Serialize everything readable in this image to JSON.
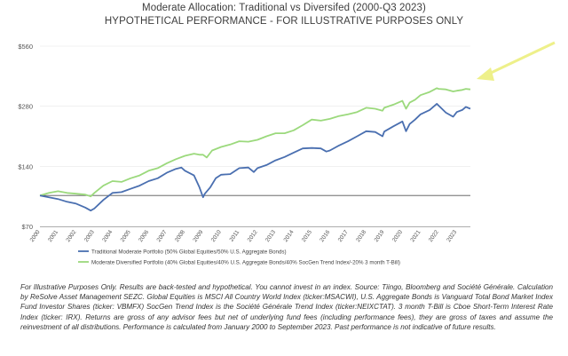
{
  "chart_data": {
    "type": "line",
    "title": "Moderate Allocation: Traditional vs Diversifed (2000-Q3 2023)",
    "subtitle": "HYPOTHETICAL PERFORMANCE - FOR ILLUSTRATIVE PURPOSES ONLY",
    "y_scale": "log",
    "ylim": [
      70,
      560
    ],
    "yticks": [
      "$70",
      "$140",
      "$280",
      "$560"
    ],
    "ytick_values": [
      70,
      140,
      280,
      560
    ],
    "xlim": [
      2000,
      2023.75
    ],
    "xticks": [
      "2000",
      "2001",
      "2002",
      "2003",
      "2004",
      "2005",
      "2006",
      "2007",
      "2008",
      "2009",
      "2010",
      "2011",
      "2012",
      "2013",
      "2014",
      "2015",
      "2016",
      "2017",
      "2018",
      "2019",
      "2020",
      "2021",
      "2022",
      "2023"
    ],
    "reference_line": 100,
    "legend_position": "bottom",
    "series": [
      {
        "name": "Traditional Moderate Portfolio (50% Global Equities/50% U.S. Aggregate Bonds)",
        "color": "#4a6fb0",
        "points": [
          [
            2000,
            100
          ],
          [
            2000.5,
            98
          ],
          [
            2001,
            96
          ],
          [
            2001.5,
            93
          ],
          [
            2002,
            91
          ],
          [
            2002.5,
            87
          ],
          [
            2002.8,
            84
          ],
          [
            2003,
            86
          ],
          [
            2003.5,
            95
          ],
          [
            2004,
            103
          ],
          [
            2004.5,
            104
          ],
          [
            2005,
            108
          ],
          [
            2005.5,
            112
          ],
          [
            2006,
            118
          ],
          [
            2006.5,
            122
          ],
          [
            2007,
            130
          ],
          [
            2007.5,
            136
          ],
          [
            2007.8,
            138
          ],
          [
            2008,
            133
          ],
          [
            2008.5,
            126
          ],
          [
            2008.8,
            110
          ],
          [
            2009.0,
            98
          ],
          [
            2009.1,
            102
          ],
          [
            2009.4,
            110
          ],
          [
            2009.7,
            122
          ],
          [
            2010,
            127
          ],
          [
            2010.5,
            128
          ],
          [
            2011,
            137
          ],
          [
            2011.5,
            138
          ],
          [
            2011.8,
            131
          ],
          [
            2012,
            137
          ],
          [
            2012.5,
            142
          ],
          [
            2013,
            150
          ],
          [
            2013.5,
            156
          ],
          [
            2014,
            164
          ],
          [
            2014.5,
            172
          ],
          [
            2015,
            173
          ],
          [
            2015.5,
            172
          ],
          [
            2015.8,
            166
          ],
          [
            2016,
            168
          ],
          [
            2016.5,
            178
          ],
          [
            2017,
            187
          ],
          [
            2017.5,
            198
          ],
          [
            2018,
            210
          ],
          [
            2018.5,
            208
          ],
          [
            2018.9,
            198
          ],
          [
            2019,
            209
          ],
          [
            2019.5,
            222
          ],
          [
            2020,
            235
          ],
          [
            2020.2,
            210
          ],
          [
            2020.4,
            228
          ],
          [
            2020.7,
            240
          ],
          [
            2021,
            255
          ],
          [
            2021.5,
            268
          ],
          [
            2021.9,
            288
          ],
          [
            2022,
            282
          ],
          [
            2022.4,
            260
          ],
          [
            2022.8,
            248
          ],
          [
            2023,
            262
          ],
          [
            2023.3,
            268
          ],
          [
            2023.5,
            278
          ],
          [
            2023.75,
            272
          ]
        ]
      },
      {
        "name": "Moderate Diversified Portfolio (40% Global Equities/40% U.S. Aggregate Bonds/40% SocGen Trend Index/-20% 3 month T-Bill)",
        "color": "#9bd97c",
        "points": [
          [
            2000,
            100
          ],
          [
            2000.5,
            103
          ],
          [
            2001,
            105
          ],
          [
            2001.5,
            103
          ],
          [
            2002,
            102
          ],
          [
            2002.5,
            101
          ],
          [
            2002.8,
            99
          ],
          [
            2003,
            103
          ],
          [
            2003.5,
            112
          ],
          [
            2004,
            118
          ],
          [
            2004.5,
            117
          ],
          [
            2005,
            122
          ],
          [
            2005.5,
            126
          ],
          [
            2006,
            133
          ],
          [
            2006.5,
            137
          ],
          [
            2007,
            145
          ],
          [
            2007.5,
            152
          ],
          [
            2008,
            158
          ],
          [
            2008.5,
            162
          ],
          [
            2008.8,
            160
          ],
          [
            2009.0,
            160
          ],
          [
            2009.2,
            155
          ],
          [
            2009.5,
            168
          ],
          [
            2010,
            175
          ],
          [
            2010.5,
            180
          ],
          [
            2011,
            187
          ],
          [
            2011.5,
            186
          ],
          [
            2012,
            190
          ],
          [
            2012.5,
            198
          ],
          [
            2013,
            205
          ],
          [
            2013.5,
            205
          ],
          [
            2014,
            212
          ],
          [
            2014.5,
            225
          ],
          [
            2015,
            240
          ],
          [
            2015.5,
            237
          ],
          [
            2016,
            242
          ],
          [
            2016.5,
            250
          ],
          [
            2017,
            255
          ],
          [
            2017.5,
            262
          ],
          [
            2018,
            275
          ],
          [
            2018.5,
            272
          ],
          [
            2018.9,
            266
          ],
          [
            2019,
            275
          ],
          [
            2019.5,
            285
          ],
          [
            2020,
            298
          ],
          [
            2020.2,
            272
          ],
          [
            2020.4,
            292
          ],
          [
            2020.7,
            302
          ],
          [
            2021,
            318
          ],
          [
            2021.5,
            330
          ],
          [
            2021.9,
            345
          ],
          [
            2022,
            342
          ],
          [
            2022.4,
            340
          ],
          [
            2022.8,
            332
          ],
          [
            2023,
            335
          ],
          [
            2023.3,
            338
          ],
          [
            2023.5,
            342
          ],
          [
            2023.75,
            340
          ]
        ]
      }
    ]
  },
  "footnote": "For Illustrative Purposes Only. Results are back-tested and hypothetical. You cannot invest in an index. Source: Tiingo, Bloomberg and Société Générale. Calculation by ReSolve Asset Management SEZC. Global Equities is MSCI All Country World Index (ticker:MSACWI), U.S. Aggregate Bonds is Vanguard Total Bond Market Index Fund Investor Shares (ticker: VBMFX) SocGen Trend Index is the Société Générale Trend Index (ticker:NEIXCTAT). 3 month T-Bill is Cboe Short-Term Interest Rate Index (ticker: IRX). Returns are gross of any advisor fees but net of underlying fund fees (including performance fees), they are gross of taxes and assume the reinvestment of all distributions. Performance is calculated from January 2000 to September 2023. Past performance is not indicative of future results.",
  "colors": {
    "arrow": "#eef08a",
    "reference_line": "#555555",
    "grid": "#e6e6e6"
  }
}
